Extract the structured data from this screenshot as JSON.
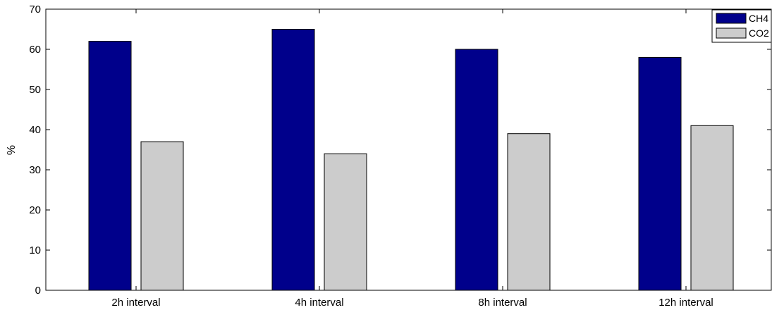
{
  "chart_data": {
    "type": "bar",
    "categories": [
      "2h interval",
      "4h interval",
      "8h interval",
      "12h interval"
    ],
    "series": [
      {
        "name": "CH4",
        "values": [
          62,
          65,
          60,
          58
        ],
        "color": "#00008b"
      },
      {
        "name": "CO2",
        "values": [
          37,
          34,
          39,
          41
        ],
        "color": "#cccccc"
      }
    ],
    "title": "",
    "xlabel": "",
    "ylabel": "%",
    "ylim": [
      0,
      70
    ],
    "yticks": [
      0,
      10,
      20,
      30,
      40,
      50,
      60,
      70
    ],
    "grid": false,
    "legend_position": "top-right"
  }
}
